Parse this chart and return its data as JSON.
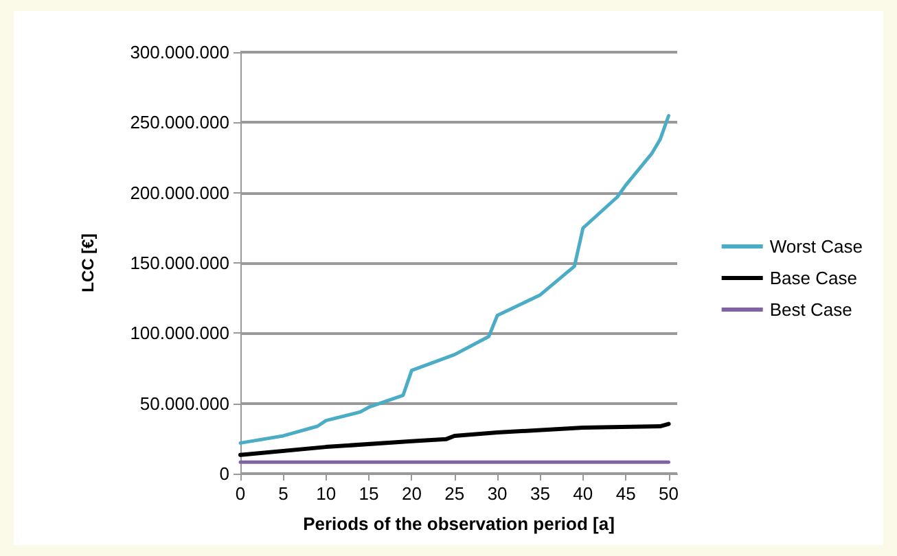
{
  "chart_data": {
    "type": "line",
    "xlabel": "Periods of the observation period [a]",
    "ylabel": "LCC [€]",
    "series": [
      {
        "name": "Worst Case",
        "color": "#4bacc6",
        "x": [
          0,
          5,
          9,
          10,
          14,
          15,
          19,
          20,
          25,
          29,
          30,
          35,
          39,
          40,
          44,
          45,
          48,
          49,
          50
        ],
        "values": [
          21800000,
          26900000,
          33700000,
          37800000,
          43900000,
          47300000,
          55800000,
          73500000,
          84700000,
          97600000,
          112600000,
          127200000,
          147600000,
          174800000,
          196900000,
          205400000,
          227600000,
          237800000,
          254800000
        ]
      },
      {
        "name": "Base Case",
        "color": "#000000",
        "x": [
          0,
          10,
          20,
          24,
          25,
          30,
          40,
          49,
          50
        ],
        "values": [
          13300000,
          19000000,
          23100000,
          24500000,
          26900000,
          29300000,
          32700000,
          33700000,
          35400000
        ]
      },
      {
        "name": "Best Case",
        "color": "#8064a2",
        "x": [
          0,
          50
        ],
        "values": [
          8200000,
          8200000
        ]
      }
    ],
    "xlim": [
      0,
      51
    ],
    "xticks": [
      0,
      5,
      10,
      15,
      20,
      25,
      30,
      35,
      40,
      45,
      50
    ],
    "ylim": [
      0,
      300000000
    ],
    "yticks": [
      {
        "value": 0,
        "label": "0"
      },
      {
        "value": 50000000,
        "label": "50.000.000"
      },
      {
        "value": 100000000,
        "label": "100.000.000"
      },
      {
        "value": 150000000,
        "label": "150.000.000"
      },
      {
        "value": 200000000,
        "label": "200.000.000"
      },
      {
        "value": 250000000,
        "label": "250.000.000"
      },
      {
        "value": 300000000,
        "label": "300.000.000"
      }
    ],
    "grid": "y",
    "legend": "right",
    "marker": "none",
    "line_style": "solid"
  }
}
